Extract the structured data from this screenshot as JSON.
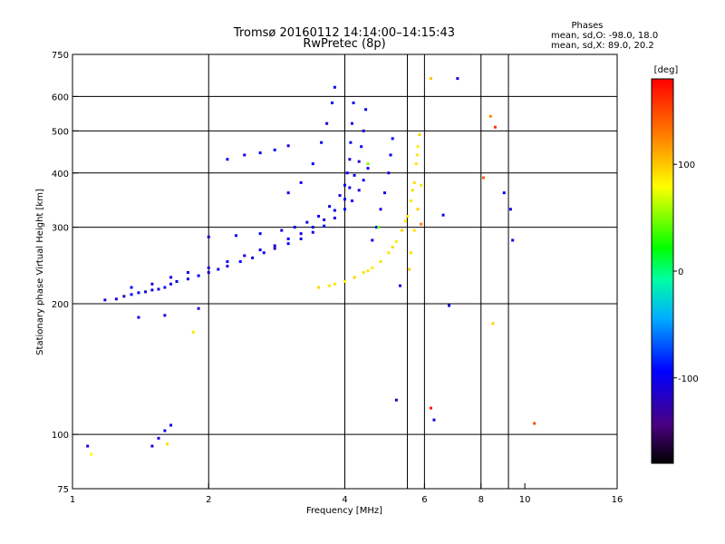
{
  "chart_data": {
    "type": "scatter",
    "title": "Tromsø 20160112 14:14:00–14:15:43",
    "subtitle": "RwPretec (8p)",
    "stats": {
      "heading": "Phases",
      "line1": "mean, sd,O: -98.0, 18.0",
      "line2": "mean, sd,X:  89.0, 20.2"
    },
    "xlabel": "Frequency [MHz]",
    "ylabel": "Stationary phase Virtual Height [km]",
    "x_scale": "log",
    "y_scale": "log",
    "xlim": [
      1,
      16
    ],
    "ylim": [
      75,
      750
    ],
    "x_ticks": [
      {
        "value": 1,
        "label": "1"
      },
      {
        "value": 2,
        "label": "2"
      },
      {
        "value": 4,
        "label": "4"
      },
      {
        "value": 6,
        "label": "6"
      },
      {
        "value": 8,
        "label": "8"
      },
      {
        "value": 10,
        "label": "10"
      },
      {
        "value": 16,
        "label": "16"
      }
    ],
    "y_ticks": [
      {
        "value": 75,
        "label": "75"
      },
      {
        "value": 100,
        "label": "100"
      },
      {
        "value": 200,
        "label": "200"
      },
      {
        "value": 300,
        "label": "300"
      },
      {
        "value": 400,
        "label": "400"
      },
      {
        "value": 500,
        "label": "500"
      },
      {
        "value": 600,
        "label": "600"
      },
      {
        "value": 750,
        "label": "750"
      }
    ],
    "x_grid": [
      2,
      4,
      5.5,
      6,
      8,
      9.2
    ],
    "y_grid": [
      100,
      200,
      300,
      400,
      500,
      600
    ],
    "grid": true,
    "colorbar": {
      "label": "[deg]",
      "range": [
        -180,
        180
      ],
      "ticks": [
        {
          "value": 100,
          "label": "100"
        },
        {
          "value": 0,
          "label": "0"
        },
        {
          "value": -100,
          "label": "-100"
        }
      ]
    },
    "series": [
      {
        "points": [
          [
            1.18,
            204,
            -110
          ],
          [
            1.25,
            205,
            -105
          ],
          [
            1.3,
            208,
            -120
          ],
          [
            1.35,
            210,
            -100
          ],
          [
            1.4,
            212,
            -95
          ],
          [
            1.45,
            213,
            -115
          ],
          [
            1.5,
            215,
            -100
          ],
          [
            1.55,
            216,
            -110
          ],
          [
            1.6,
            218,
            -90
          ],
          [
            1.65,
            222,
            -105
          ],
          [
            1.7,
            225,
            -100
          ],
          [
            1.8,
            228,
            -110
          ],
          [
            1.9,
            232,
            -95
          ],
          [
            2.0,
            236,
            -105
          ],
          [
            2.1,
            240,
            -100
          ],
          [
            2.2,
            244,
            -110
          ],
          [
            2.35,
            250,
            -95
          ],
          [
            2.5,
            255,
            -105
          ],
          [
            2.65,
            262,
            -100
          ],
          [
            2.8,
            268,
            -110
          ],
          [
            3.0,
            275,
            -95
          ],
          [
            3.2,
            282,
            -105
          ],
          [
            3.4,
            292,
            -100
          ],
          [
            3.6,
            302,
            -90
          ],
          [
            3.8,
            315,
            -105
          ],
          [
            4.0,
            330,
            -100
          ],
          [
            4.15,
            345,
            -95
          ],
          [
            4.3,
            365,
            -110
          ],
          [
            4.4,
            385,
            -100
          ],
          [
            4.5,
            410,
            -95
          ],
          [
            1.35,
            218,
            -100
          ],
          [
            1.5,
            222,
            -110
          ],
          [
            1.65,
            230,
            -100
          ],
          [
            1.8,
            236,
            -95
          ],
          [
            2.0,
            242,
            -110
          ],
          [
            2.2,
            250,
            -100
          ],
          [
            2.4,
            258,
            -105
          ],
          [
            2.6,
            266,
            -100
          ],
          [
            2.8,
            272,
            -110
          ],
          [
            3.0,
            282,
            -95
          ],
          [
            3.2,
            290,
            -105
          ],
          [
            3.4,
            300,
            -100
          ],
          [
            3.6,
            312,
            -110
          ],
          [
            3.8,
            328,
            -100
          ],
          [
            4.0,
            348,
            -95
          ],
          [
            4.1,
            370,
            -105
          ],
          [
            4.2,
            395,
            -100
          ],
          [
            4.3,
            425,
            -110
          ],
          [
            4.35,
            460,
            -95
          ],
          [
            4.4,
            500,
            -105
          ],
          [
            4.45,
            560,
            -100
          ],
          [
            2.0,
            285,
            -105
          ],
          [
            2.3,
            287,
            -100
          ],
          [
            2.6,
            290,
            -95
          ],
          [
            2.9,
            295,
            -105
          ],
          [
            3.1,
            300,
            -100
          ],
          [
            3.3,
            308,
            -110
          ],
          [
            3.5,
            318,
            -95
          ],
          [
            3.7,
            335,
            -100
          ],
          [
            3.9,
            355,
            -105
          ],
          [
            4.0,
            375,
            -95
          ],
          [
            4.05,
            400,
            -100
          ],
          [
            4.1,
            430,
            -110
          ],
          [
            4.12,
            470,
            -100
          ],
          [
            4.15,
            520,
            -95
          ],
          [
            4.18,
            580,
            -105
          ],
          [
            3.0,
            360,
            -100
          ],
          [
            3.2,
            380,
            -105
          ],
          [
            3.4,
            420,
            -95
          ],
          [
            3.55,
            470,
            -100
          ],
          [
            3.65,
            520,
            -110
          ],
          [
            3.75,
            580,
            -100
          ],
          [
            3.8,
            630,
            -95
          ],
          [
            2.4,
            440,
            -105
          ],
          [
            2.6,
            445,
            -100
          ],
          [
            2.8,
            452,
            -95
          ],
          [
            3.0,
            462,
            -105
          ],
          [
            2.2,
            430,
            -100
          ],
          [
            1.9,
            195,
            -110
          ],
          [
            1.6,
            188,
            -105
          ],
          [
            1.4,
            186,
            -100
          ],
          [
            1.55,
            98,
            -110
          ],
          [
            1.6,
            102,
            -105
          ],
          [
            1.65,
            105,
            -100
          ],
          [
            1.5,
            94,
            -110
          ],
          [
            1.08,
            94,
            -105
          ],
          [
            4.6,
            280,
            -100
          ],
          [
            4.7,
            300,
            -95
          ],
          [
            4.8,
            330,
            -105
          ],
          [
            4.9,
            360,
            -100
          ],
          [
            5.0,
            400,
            -110
          ],
          [
            5.05,
            440,
            -95
          ],
          [
            5.1,
            480,
            -100
          ],
          [
            5.3,
            220,
            -100
          ],
          [
            5.2,
            120,
            -110
          ],
          [
            6.3,
            108,
            -105
          ],
          [
            6.6,
            320,
            -100
          ],
          [
            7.1,
            660,
            -110
          ],
          [
            9.0,
            360,
            -100
          ],
          [
            9.3,
            330,
            -105
          ],
          [
            9.4,
            280,
            -110
          ],
          [
            6.8,
            198,
            -105
          ]
        ]
      },
      {
        "points": [
          [
            3.8,
            222,
            90
          ],
          [
            4.0,
            225,
            85
          ],
          [
            4.2,
            230,
            95
          ],
          [
            4.4,
            236,
            90
          ],
          [
            4.6,
            242,
            88
          ],
          [
            4.8,
            250,
            92
          ],
          [
            5.0,
            262,
            90
          ],
          [
            5.2,
            278,
            85
          ],
          [
            5.35,
            295,
            95
          ],
          [
            5.5,
            318,
            90
          ],
          [
            5.6,
            345,
            88
          ],
          [
            5.7,
            380,
            92
          ],
          [
            5.75,
            420,
            90
          ],
          [
            5.8,
            460,
            85
          ],
          [
            5.85,
            490,
            95
          ],
          [
            3.5,
            218,
            95
          ],
          [
            3.7,
            220,
            88
          ],
          [
            4.5,
            238,
            90
          ],
          [
            5.1,
            270,
            92
          ],
          [
            5.45,
            310,
            86
          ],
          [
            5.65,
            365,
            94
          ],
          [
            5.78,
            440,
            88
          ],
          [
            5.55,
            240,
            100
          ],
          [
            5.6,
            262,
            92
          ],
          [
            5.7,
            295,
            88
          ],
          [
            5.8,
            330,
            96
          ],
          [
            5.9,
            375,
            90
          ],
          [
            1.1,
            90,
            80
          ],
          [
            1.62,
            95,
            92
          ],
          [
            1.85,
            172,
            88
          ],
          [
            4.75,
            300,
            45
          ],
          [
            4.5,
            420,
            50
          ],
          [
            5.9,
            305,
            130
          ],
          [
            6.2,
            660,
            100
          ],
          [
            8.4,
            540,
            120
          ],
          [
            8.6,
            510,
            160
          ],
          [
            8.5,
            180,
            95
          ],
          [
            10.5,
            106,
            150
          ],
          [
            8.1,
            390,
            140
          ],
          [
            6.2,
            115,
            170
          ]
        ]
      }
    ]
  }
}
